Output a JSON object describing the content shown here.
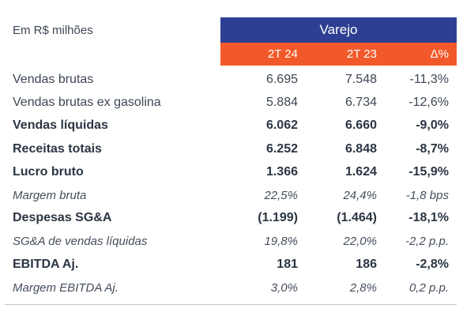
{
  "unit_label": "Em R$ milhões",
  "segment": "Varejo",
  "columns": [
    "2T 24",
    "2T 23",
    "Δ%"
  ],
  "rows": [
    {
      "label": "Vendas brutas",
      "v1": "6.695",
      "v2": "7.548",
      "v3": "-11,3%"
    },
    {
      "label": "Vendas brutas ex gasolina",
      "v1": "5.884",
      "v2": "6.734",
      "v3": "-12,6%"
    },
    {
      "label": "Vendas líquidas",
      "v1": "6.062",
      "v2": "6.660",
      "v3": "-9,0%"
    },
    {
      "label": "Receitas totais",
      "v1": "6.252",
      "v2": "6.848",
      "v3": "-8,7%"
    },
    {
      "label": "Lucro bruto",
      "v1": "1.366",
      "v2": "1.624",
      "v3": "-15,9%"
    },
    {
      "label": "Margem bruta",
      "v1": "22,5%",
      "v2": "24,4%",
      "v3": "-1,8 bps"
    },
    {
      "label": "Despesas SG&A",
      "v1": "(1.199)",
      "v2": "(1.464)",
      "v3": "-18,1%"
    },
    {
      "label": "SG&A de vendas líquidas",
      "v1": "19,8%",
      "v2": "22,0%",
      "v3": "-2,2 p.p."
    },
    {
      "label": "EBITDA Aj.",
      "v1": "181",
      "v2": "186",
      "v3": "-2,8%"
    },
    {
      "label": "Margem EBITDA Aj.",
      "v1": "3,0%",
      "v2": "2,8%",
      "v3": "0,2 p.p."
    }
  ]
}
